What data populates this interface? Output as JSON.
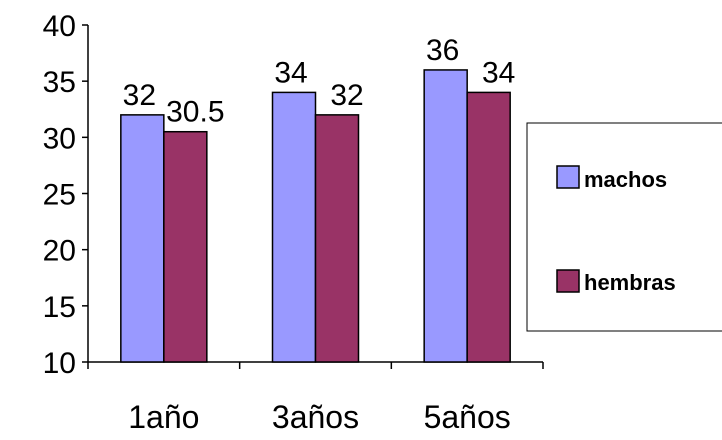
{
  "chart_data": {
    "type": "bar",
    "categories": [
      "1año",
      "3años",
      "5años"
    ],
    "series": [
      {
        "name": "machos",
        "values": [
          32,
          34,
          36
        ],
        "labels": [
          "32",
          "34",
          "36"
        ],
        "color": "#9999ff"
      },
      {
        "name": "hembras",
        "values": [
          30.5,
          32,
          34
        ],
        "labels": [
          "30.5",
          "32",
          "34"
        ],
        "color": "#993366"
      }
    ],
    "ylim": [
      10,
      40
    ],
    "yticks": [
      "10",
      "15",
      "20",
      "25",
      "30",
      "35",
      "40"
    ],
    "grid": false,
    "legend_position": "right",
    "title": "",
    "xlabel": "",
    "ylabel": ""
  }
}
